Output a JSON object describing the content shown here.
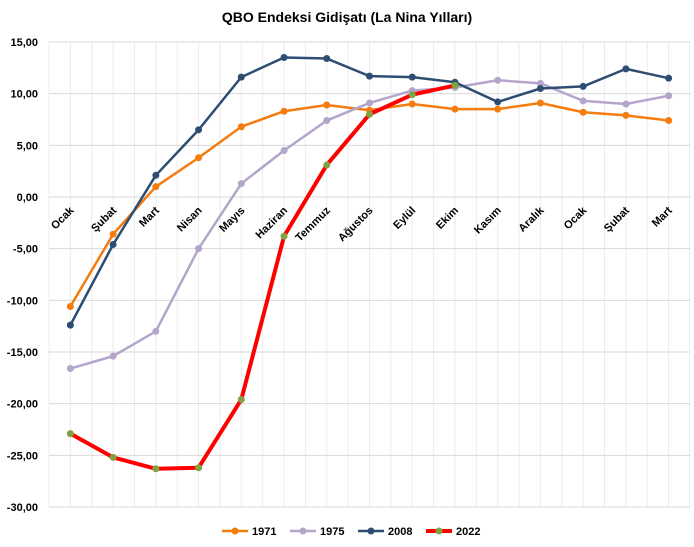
{
  "chart_data": {
    "type": "line",
    "title": "QBO Endeksi Gidişatı (La Nina Yılları)",
    "xlabel": "",
    "ylabel": "",
    "categories": [
      "Ocak",
      "Şubat",
      "Mart",
      "Nisan",
      "Mayıs",
      "Haziran",
      "Temmuz",
      "Ağustos",
      "Eylül",
      "Ekim",
      "Kasım",
      "Aralık",
      "Ocak",
      "Şubat",
      "Mart"
    ],
    "ylim": [
      -30,
      15
    ],
    "yticks": [
      15,
      10,
      5,
      0,
      -5,
      -10,
      -15,
      -20,
      -25,
      -30
    ],
    "ytick_labels": [
      "15,00",
      "10,00",
      "5,00",
      "0,00",
      "-5,00",
      "-10,00",
      "-15,00",
      "-20,00",
      "-25,00",
      "-30,00"
    ],
    "grid": true,
    "legend_position": "bottom",
    "series": [
      {
        "name": "1971",
        "color": "#F57C0F",
        "marker": "#F57C0F",
        "values": [
          -10.6,
          -3.6,
          1.0,
          3.8,
          6.8,
          8.3,
          8.9,
          8.4,
          9.0,
          8.5,
          8.5,
          9.1,
          8.2,
          7.9,
          7.4
        ]
      },
      {
        "name": "1975",
        "color": "#B4A5CC",
        "marker": "#B4A5CC",
        "values": [
          -16.6,
          -15.4,
          -13.0,
          -5.0,
          1.3,
          4.5,
          7.4,
          9.1,
          10.3,
          10.6,
          11.3,
          11.0,
          9.3,
          9.0,
          9.8
        ]
      },
      {
        "name": "2008",
        "color": "#2E4D73",
        "marker": "#2E4D73",
        "values": [
          -12.4,
          -4.6,
          2.1,
          6.5,
          11.6,
          13.5,
          13.4,
          11.7,
          11.6,
          11.1,
          9.2,
          10.5,
          10.7,
          12.4,
          11.5
        ]
      },
      {
        "name": "2022",
        "color": "#FF0000",
        "marker": "#7FA33F",
        "values": [
          -22.9,
          -25.2,
          -26.3,
          -26.2,
          -19.6,
          -3.8,
          3.1,
          8.0,
          9.9,
          10.8,
          null,
          null,
          null,
          null,
          null
        ]
      }
    ]
  }
}
